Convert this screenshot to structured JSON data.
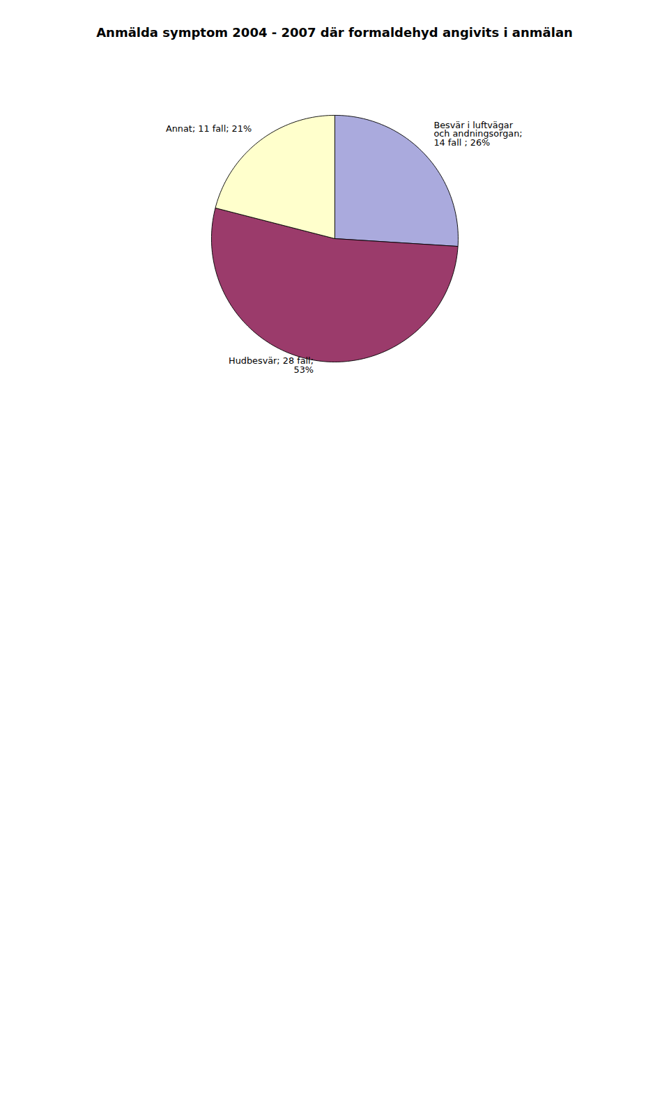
{
  "chart_data": {
    "type": "pie",
    "title": "Anmälda symptom 2004 - 2007 där formaldehyd angivits i anmälan",
    "categories": [
      "Besvär i luftvägar\noch andningsorgan;\n14 fall ; 26%",
      "Hudbesvär; 28 fall;\n53%",
      "Annat; 11 fall; 21%"
    ],
    "values": [
      26,
      53,
      21
    ],
    "colors": [
      "#AAAADD",
      "#9B3B6B",
      "#FFFFCC"
    ]
  }
}
